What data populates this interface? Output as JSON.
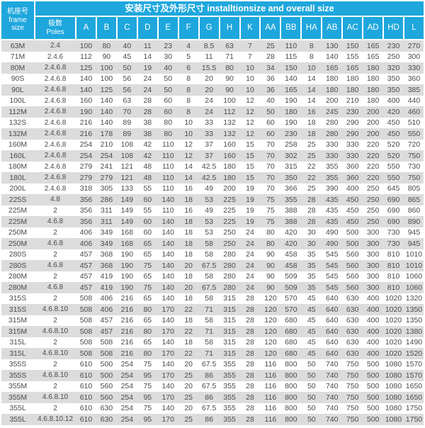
{
  "header": {
    "title": "安装尺寸及外形尺寸 installtionsize and overall size",
    "frame_size_zh": "机座号",
    "frame_size_en": "frame size",
    "poles_zh": "极数",
    "poles_en": "Poles",
    "dim_labels": [
      "A",
      "B",
      "C",
      "D",
      "E",
      "F",
      "G",
      "H",
      "K",
      "AA",
      "BB",
      "HA",
      "AB",
      "AC",
      "AD",
      "HD",
      "L"
    ]
  },
  "colors": {
    "header_bg": "#1ea7dd",
    "header_text": "#ffffff",
    "row_stripe": "#dcdcdc",
    "row_plain": "#ffffff",
    "data_text": "#4a4a4a"
  },
  "chart_data": {
    "type": "table",
    "title": "安装尺寸及外形尺寸 installtionsize and overall size",
    "columns": [
      "机座号 frame size",
      "极数 Poles",
      "A",
      "B",
      "C",
      "D",
      "E",
      "F",
      "G",
      "H",
      "K",
      "AA",
      "BB",
      "HA",
      "AB",
      "AC",
      "AD",
      "HD",
      "L"
    ],
    "rows": [
      [
        "63M",
        "2.4",
        100,
        80,
        40,
        11,
        23,
        4,
        8.5,
        63,
        7,
        25,
        110,
        8,
        130,
        150,
        165,
        230,
        270
      ],
      [
        "71M",
        "2.4.6",
        112,
        90,
        45,
        14,
        30,
        5,
        11,
        71,
        7,
        28,
        115,
        8,
        140,
        155,
        165,
        250,
        300
      ],
      [
        "80M",
        "2.4.6.8",
        125,
        100,
        50,
        19,
        40,
        6,
        15.5,
        80,
        10,
        34,
        150,
        10,
        165,
        165,
        180,
        320,
        330
      ],
      [
        "90S",
        "2.4.6.8",
        140,
        100,
        56,
        24,
        50,
        8,
        20,
        90,
        10,
        36,
        140,
        14,
        180,
        180,
        180,
        350,
        360
      ],
      [
        "90L",
        "2.4.6.8",
        140,
        125,
        56,
        24,
        50,
        8,
        20,
        90,
        10,
        36,
        165,
        14,
        180,
        180,
        180,
        350,
        385
      ],
      [
        "100L",
        "2.4.6.8",
        160,
        140,
        63,
        28,
        60,
        8,
        24,
        100,
        12,
        40,
        190,
        14,
        200,
        210,
        180,
        400,
        440
      ],
      [
        "112M",
        "2.4.6.8",
        190,
        140,
        70,
        28,
        60,
        8,
        24,
        112,
        12,
        50,
        180,
        16,
        245,
        230,
        200,
        420,
        460
      ],
      [
        "132S",
        "2.4.6.8",
        216,
        140,
        89,
        38,
        80,
        10,
        33,
        132,
        12,
        60,
        190,
        18,
        280,
        290,
        200,
        450,
        510
      ],
      [
        "132M",
        "2.4.6.8",
        216,
        178,
        89,
        38,
        80,
        10,
        33,
        132,
        12,
        60,
        230,
        18,
        280,
        290,
        200,
        450,
        550
      ],
      [
        "160M",
        "2.4.6.8",
        254,
        210,
        108,
        42,
        110,
        12,
        37,
        160,
        15,
        70,
        258,
        25,
        330,
        330,
        220,
        520,
        720
      ],
      [
        "160L",
        "2.4.6.8",
        254,
        254,
        108,
        42,
        110,
        12,
        37,
        160,
        15,
        70,
        302,
        25,
        330,
        330,
        220,
        520,
        750
      ],
      [
        "180M",
        "2.4.6.8",
        279,
        241,
        121,
        48,
        110,
        14,
        42.5,
        180,
        15,
        70,
        315,
        22,
        355,
        360,
        220,
        550,
        730
      ],
      [
        "180L",
        "2.4.6.8",
        279,
        279,
        121,
        48,
        110,
        14,
        42.5,
        180,
        15,
        70,
        350,
        22,
        355,
        360,
        220,
        550,
        750
      ],
      [
        "200L",
        "2.4.6.8",
        318,
        305,
        133,
        55,
        110,
        16,
        49,
        200,
        19,
        70,
        366,
        25,
        390,
        400,
        250,
        645,
        805
      ],
      [
        "225S",
        "4.8",
        356,
        286,
        149,
        60,
        140,
        18,
        53,
        225,
        19,
        75,
        355,
        28,
        435,
        450,
        250,
        690,
        865
      ],
      [
        "225M",
        "2",
        356,
        311,
        149,
        55,
        110,
        16,
        49,
        225,
        19,
        75,
        388,
        28,
        435,
        450,
        250,
        690,
        860
      ],
      [
        "225M",
        "4.6.8",
        356,
        311,
        149,
        60,
        140,
        18,
        53,
        225,
        19,
        75,
        388,
        28,
        435,
        450,
        250,
        690,
        890
      ],
      [
        "250M",
        "2",
        406,
        349,
        168,
        60,
        140,
        18,
        53,
        250,
        24,
        80,
        420,
        30,
        490,
        500,
        300,
        730,
        945
      ],
      [
        "250M",
        "4.6.8",
        406,
        349,
        168,
        65,
        140,
        18,
        58,
        250,
        24,
        80,
        420,
        30,
        490,
        500,
        300,
        730,
        945
      ],
      [
        "280S",
        "2",
        457,
        368,
        190,
        65,
        140,
        18,
        58,
        280,
        24,
        90,
        458,
        35,
        545,
        560,
        300,
        810,
        1010
      ],
      [
        "280S",
        "4.6.8",
        457,
        368,
        190,
        75,
        140,
        20,
        67.5,
        280,
        24,
        90,
        458,
        35,
        545,
        560,
        300,
        810,
        1010
      ],
      [
        "280M",
        "2",
        457,
        419,
        190,
        65,
        140,
        18,
        58,
        280,
        24,
        90,
        509,
        35,
        545,
        560,
        300,
        810,
        1060
      ],
      [
        "280M",
        "4.6.8",
        457,
        419,
        190,
        75,
        140,
        20,
        67.5,
        280,
        24,
        90,
        509,
        35,
        545,
        560,
        300,
        810,
        1060
      ],
      [
        "315S",
        "2",
        508,
        406,
        216,
        65,
        140,
        18,
        58,
        315,
        28,
        120,
        570,
        45,
        640,
        630,
        400,
        1020,
        1320
      ],
      [
        "315S",
        "4.6.8.10",
        508,
        406,
        216,
        80,
        170,
        22,
        71,
        315,
        28,
        120,
        570,
        45,
        640,
        630,
        400,
        1020,
        1350
      ],
      [
        "315M",
        "2",
        508,
        457,
        216,
        65,
        140,
        18,
        58,
        315,
        28,
        120,
        680,
        45,
        640,
        630,
        400,
        1020,
        1350
      ],
      [
        "315M",
        "4.6.8.10",
        508,
        457,
        216,
        80,
        170,
        22,
        71,
        315,
        28,
        120,
        680,
        45,
        640,
        630,
        400,
        1020,
        1380
      ],
      [
        "315L",
        "2",
        508,
        508,
        216,
        65,
        140,
        18,
        58,
        315,
        28,
        120,
        680,
        45,
        640,
        630,
        400,
        1020,
        1490
      ],
      [
        "315L",
        "4.6.8.10",
        508,
        508,
        216,
        80,
        170,
        22,
        71,
        315,
        28,
        120,
        680,
        45,
        640,
        630,
        400,
        1020,
        1520
      ],
      [
        "355S",
        "2",
        610,
        500,
        254,
        75,
        140,
        20,
        67.5,
        355,
        28,
        116,
        800,
        50,
        740,
        750,
        500,
        1080,
        1570
      ],
      [
        "355S",
        "4.6.8.10",
        610,
        500,
        254,
        95,
        170,
        25,
        86,
        355,
        28,
        116,
        800,
        50,
        740,
        750,
        500,
        1080,
        1570
      ],
      [
        "355M",
        "2",
        610,
        560,
        254,
        75,
        140,
        20,
        67.5,
        355,
        28,
        116,
        800,
        50,
        740,
        750,
        500,
        1080,
        1650
      ],
      [
        "355M",
        "4.6.8.10",
        610,
        560,
        254,
        95,
        170,
        25,
        86,
        355,
        28,
        116,
        800,
        50,
        740,
        750,
        500,
        1080,
        1650
      ],
      [
        "355L",
        "2",
        610,
        630,
        254,
        75,
        140,
        20,
        67.5,
        355,
        28,
        116,
        800,
        50,
        740,
        750,
        500,
        1080,
        1750
      ],
      [
        "355L",
        "4.6.8.10.12",
        610,
        630,
        254,
        95,
        170,
        25,
        86,
        355,
        28,
        116,
        800,
        50,
        740,
        750,
        500,
        1080,
        1750
      ]
    ]
  }
}
